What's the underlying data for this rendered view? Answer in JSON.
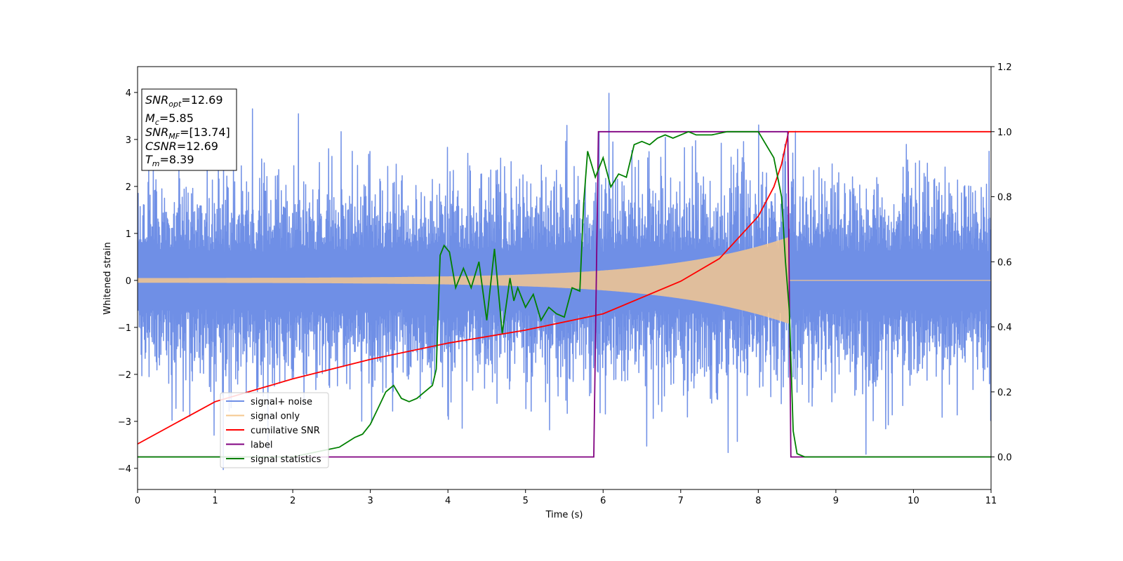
{
  "chart_data": {
    "type": "line",
    "xlabel": "Time (s)",
    "ylabel": "Whitened strain",
    "xlim": [
      0,
      11
    ],
    "ylim": [
      -4.45,
      4.55
    ],
    "y2lim": [
      -0.1,
      1.2
    ],
    "x_ticks": [
      "0",
      "1",
      "2",
      "3",
      "4",
      "5",
      "6",
      "7",
      "8",
      "9",
      "10",
      "11"
    ],
    "y_ticks": [
      "−4",
      "−3",
      "−2",
      "−1",
      "0",
      "1",
      "2",
      "3",
      "4"
    ],
    "y2_ticks": [
      "0.0",
      "0.2",
      "0.4",
      "0.6",
      "0.8",
      "1.0",
      "1.2"
    ],
    "grid": false,
    "legend_position": "lower-left",
    "info_box": {
      "snr_opt": "=12.69",
      "mc": "=5.85",
      "snr_mf": "=[13.74]",
      "csnr": "=12.69",
      "tm": "=8.39"
    },
    "series": [
      {
        "name": "signal+ noise",
        "axis": "left",
        "color": "#6f8fe6",
        "approx_amplitude": 2.0,
        "approx_peak_max": 4.15,
        "approx_peak_min": -4.05
      },
      {
        "name": "signal only",
        "axis": "left",
        "color": "#f5c78e",
        "chirp_start_amplitude": 0.05,
        "chirp_end_amplitude": 0.8,
        "merger_time": 8.39
      },
      {
        "name": "cumilative SNR",
        "axis": "right",
        "color": "#ff0000",
        "x": [
          0,
          1,
          2,
          3,
          4,
          5,
          6,
          7,
          7.5,
          8,
          8.2,
          8.3,
          8.39,
          11
        ],
        "y": [
          0.04,
          0.17,
          0.24,
          0.3,
          0.35,
          0.39,
          0.44,
          0.54,
          0.61,
          0.74,
          0.83,
          0.9,
          1.0,
          1.0
        ]
      },
      {
        "name": "label",
        "axis": "right",
        "color": "#800080",
        "x": [
          0,
          5.88,
          5.94,
          8.38,
          8.42,
          11
        ],
        "y": [
          0,
          0,
          1,
          1,
          0,
          0
        ]
      },
      {
        "name": "signal statistics",
        "axis": "right",
        "color": "#008000",
        "x": [
          0,
          1.0,
          2.0,
          2.4,
          2.6,
          2.8,
          2.9,
          3.0,
          3.1,
          3.2,
          3.3,
          3.4,
          3.5,
          3.6,
          3.7,
          3.8,
          3.85,
          3.9,
          3.95,
          4.02,
          4.1,
          4.2,
          4.3,
          4.4,
          4.5,
          4.6,
          4.7,
          4.8,
          4.85,
          4.9,
          5.0,
          5.1,
          5.2,
          5.3,
          5.4,
          5.5,
          5.6,
          5.7,
          5.75,
          5.8,
          5.9,
          6.0,
          6.1,
          6.2,
          6.3,
          6.4,
          6.5,
          6.6,
          6.7,
          6.8,
          6.9,
          7.0,
          7.1,
          7.2,
          7.4,
          7.6,
          7.8,
          8.0,
          8.1,
          8.2,
          8.3,
          8.35,
          8.4,
          8.45,
          8.5,
          8.6,
          9.0,
          11.0
        ],
        "y": [
          0,
          0,
          0.0,
          0.02,
          0.03,
          0.06,
          0.07,
          0.1,
          0.15,
          0.2,
          0.22,
          0.18,
          0.17,
          0.18,
          0.2,
          0.22,
          0.27,
          0.62,
          0.65,
          0.63,
          0.52,
          0.58,
          0.52,
          0.6,
          0.42,
          0.64,
          0.38,
          0.55,
          0.48,
          0.52,
          0.46,
          0.5,
          0.42,
          0.46,
          0.44,
          0.43,
          0.52,
          0.51,
          0.78,
          0.94,
          0.86,
          0.92,
          0.83,
          0.87,
          0.86,
          0.96,
          0.97,
          0.96,
          0.98,
          0.99,
          0.98,
          0.99,
          1.0,
          0.99,
          0.99,
          1.0,
          1.0,
          1.0,
          0.96,
          0.92,
          0.8,
          0.6,
          0.45,
          0.08,
          0.01,
          0.0,
          0.0,
          0.0
        ]
      }
    ]
  }
}
